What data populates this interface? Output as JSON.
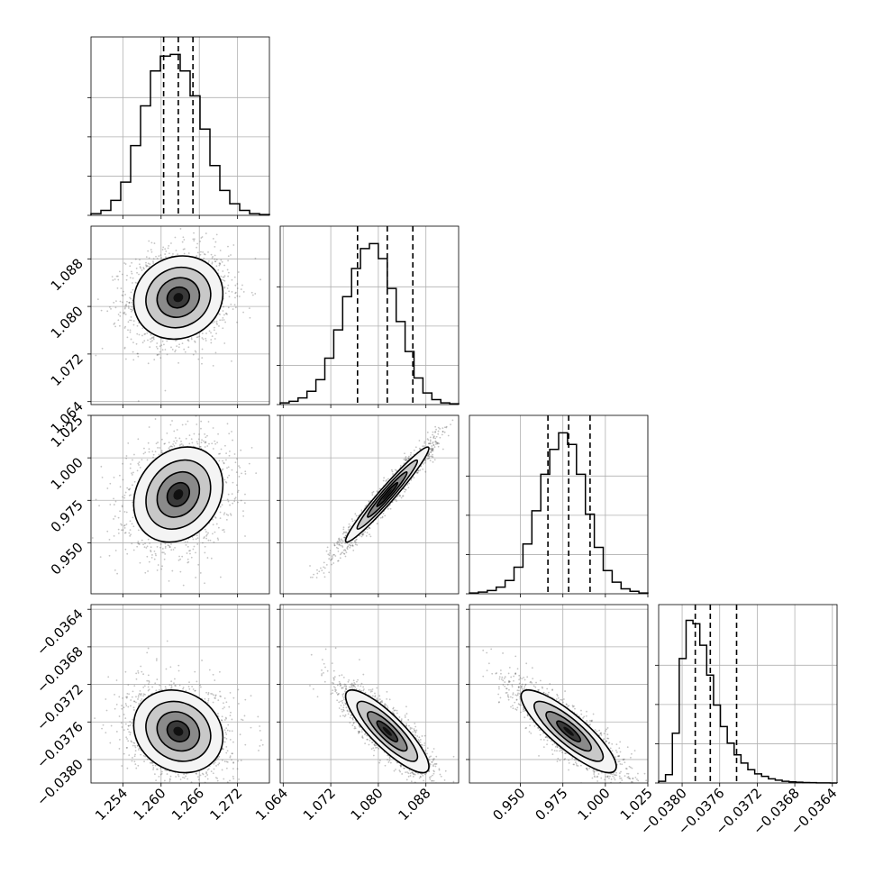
{
  "chart_data": {
    "type": "corner",
    "title": "",
    "grid": true,
    "parameters": [
      {
        "range": [
          1.249,
          1.277
        ],
        "ticks": [
          1.254,
          1.26,
          1.266,
          1.272
        ],
        "tick_labels": [
          "1.254",
          "1.260",
          "1.266",
          "1.272"
        ],
        "quantiles": [
          1.2604,
          1.2627,
          1.265
        ]
      },
      {
        "range": [
          1.0635,
          1.0935
        ],
        "ticks": [
          1.064,
          1.072,
          1.08,
          1.088
        ],
        "tick_labels": [
          "1.064",
          "1.072",
          "1.080",
          "1.088"
        ],
        "quantiles": [
          1.0765,
          1.0815,
          1.0858
        ]
      },
      {
        "range": [
          0.92,
          1.025
        ],
        "ticks": [
          0.95,
          0.975,
          1.0,
          1.025
        ],
        "tick_labels": [
          "0.950",
          "0.975",
          "1.000",
          "1.025"
        ],
        "quantiles": [
          0.9662,
          0.9784,
          0.991
        ]
      },
      {
        "range": [
          -0.03825,
          -0.03635
        ],
        "ticks": [
          -0.038,
          -0.0376,
          -0.0372,
          -0.0368,
          -0.0364
        ],
        "tick_labels": [
          "−0.0380",
          "−0.0376",
          "−0.0372",
          "−0.0368",
          "−0.0364"
        ],
        "quantiles": [
          -0.03786,
          -0.0377,
          -0.03742
        ]
      }
    ],
    "histograms": [
      [
        0.01,
        0.03,
        0.09,
        0.2,
        0.42,
        0.66,
        0.87,
        0.96,
        0.97,
        0.87,
        0.72,
        0.52,
        0.3,
        0.15,
        0.07,
        0.03,
        0.01,
        0.005
      ],
      [
        0.01,
        0.02,
        0.04,
        0.08,
        0.15,
        0.28,
        0.45,
        0.65,
        0.82,
        0.94,
        0.97,
        0.88,
        0.7,
        0.5,
        0.32,
        0.16,
        0.07,
        0.03,
        0.01,
        0.005
      ],
      [
        0.005,
        0.01,
        0.02,
        0.04,
        0.08,
        0.16,
        0.3,
        0.5,
        0.72,
        0.87,
        0.97,
        0.9,
        0.72,
        0.48,
        0.28,
        0.14,
        0.07,
        0.03,
        0.015,
        0.005
      ],
      [
        0.01,
        0.05,
        0.3,
        0.75,
        0.98,
        0.96,
        0.83,
        0.65,
        0.47,
        0.34,
        0.24,
        0.17,
        0.12,
        0.08,
        0.055,
        0.04,
        0.025,
        0.017,
        0.01,
        0.007,
        0.005,
        0.003,
        0.002,
        0.001,
        0.0005,
        0.0003
      ]
    ],
    "scatter_2d": [
      {
        "row": 1,
        "col": 0,
        "mean": [
          1.2627,
          1.0815
        ],
        "sd": [
          0.0035,
          0.0035
        ],
        "rho": 0.1
      },
      {
        "row": 2,
        "col": 0,
        "mean": [
          1.2627,
          0.9784
        ],
        "sd": [
          0.0035,
          0.014
        ],
        "rho": 0.2
      },
      {
        "row": 2,
        "col": 1,
        "mean": [
          1.0815,
          0.9784
        ],
        "sd": [
          0.0035,
          0.014
        ],
        "rho": 0.97
      },
      {
        "row": 3,
        "col": 0,
        "mean": [
          1.2627,
          -0.0377
        ],
        "sd": [
          0.0035,
          0.00022
        ],
        "rho": -0.15
      },
      {
        "row": 3,
        "col": 1,
        "mean": [
          1.0815,
          -0.0377
        ],
        "sd": [
          0.0035,
          0.00022
        ],
        "rho": -0.85
      },
      {
        "row": 3,
        "col": 2,
        "mean": [
          0.9784,
          -0.0377
        ],
        "sd": [
          0.014,
          0.00022
        ],
        "rho": -0.85
      }
    ]
  }
}
